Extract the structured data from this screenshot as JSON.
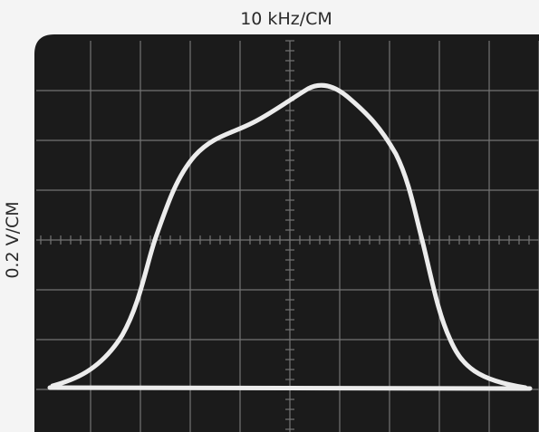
{
  "labels": {
    "horizontal_scale": "10 kHz/CM",
    "vertical_scale": "0.2 V/CM"
  }
}
